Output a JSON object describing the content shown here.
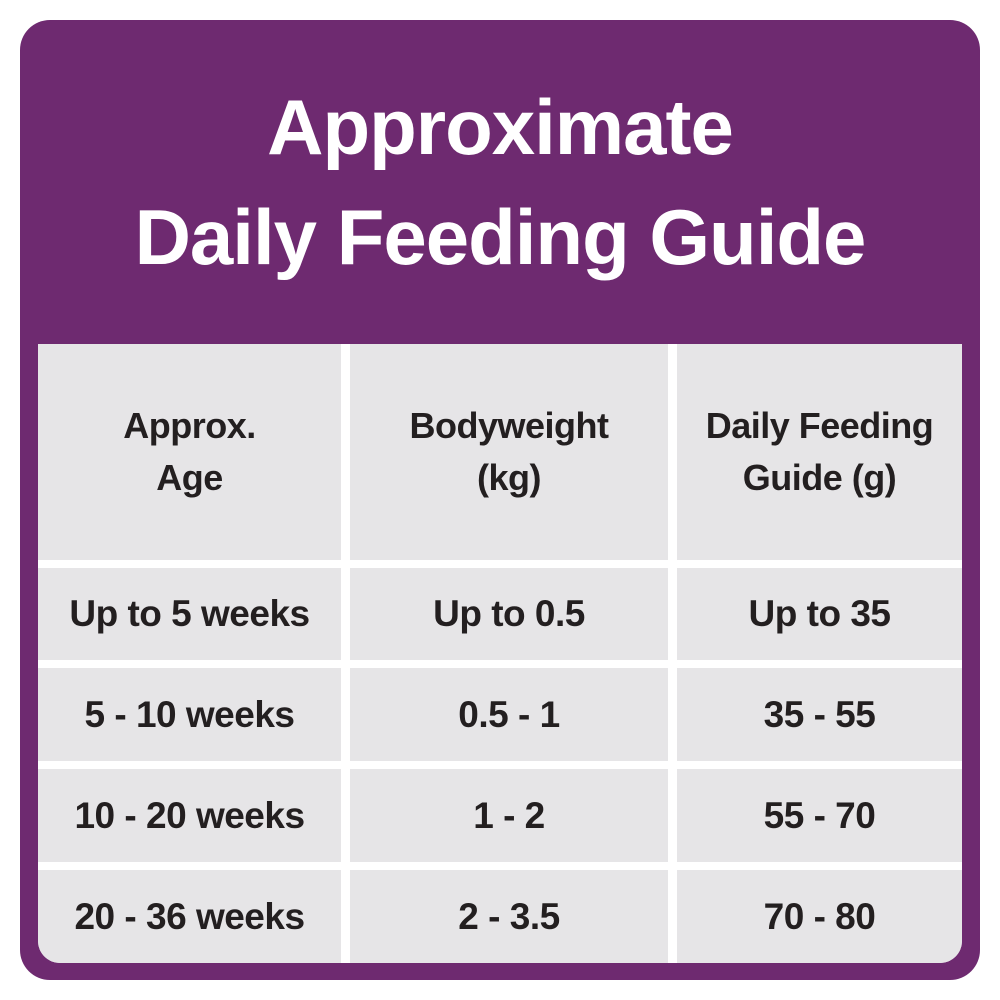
{
  "theme": {
    "purple": "#6e2a70",
    "cell_gray": "#e6e5e7",
    "text_dark": "#231f20",
    "title_white": "#ffffff",
    "page_background": "#ffffff"
  },
  "header": {
    "title_line1": "Approximate",
    "title_line2": "Daily Feeding Guide"
  },
  "table": {
    "columns": [
      {
        "label_line1": "Approx.",
        "label_line2": "Age"
      },
      {
        "label_line1": "Bodyweight",
        "label_line2": "(kg)"
      },
      {
        "label_line1": "Daily Feeding",
        "label_line2": "Guide (g)"
      }
    ],
    "rows": [
      {
        "age": "Up to 5 weeks",
        "bodyweight": "Up to 0.5",
        "feeding": "Up to 35"
      },
      {
        "age": "5 - 10 weeks",
        "bodyweight": "0.5 - 1",
        "feeding": "35 - 55"
      },
      {
        "age": "10 - 20 weeks",
        "bodyweight": "1 - 2",
        "feeding": "55 - 70"
      },
      {
        "age": "20 - 36 weeks",
        "bodyweight": "2 - 3.5",
        "feeding": "70 - 80"
      }
    ]
  },
  "chart_data": {
    "type": "table",
    "title": "Approximate Daily Feeding Guide",
    "columns": [
      "Approx. Age",
      "Bodyweight (kg)",
      "Daily Feeding Guide (g)"
    ],
    "rows": [
      [
        "Up to 5 weeks",
        "Up to 0.5",
        "Up to 35"
      ],
      [
        "5 - 10 weeks",
        "0.5 - 1",
        "35 - 55"
      ],
      [
        "10 - 20 weeks",
        "1 - 2",
        "55 - 70"
      ],
      [
        "20 - 36 weeks",
        "2 - 3.5",
        "70 - 80"
      ]
    ]
  }
}
